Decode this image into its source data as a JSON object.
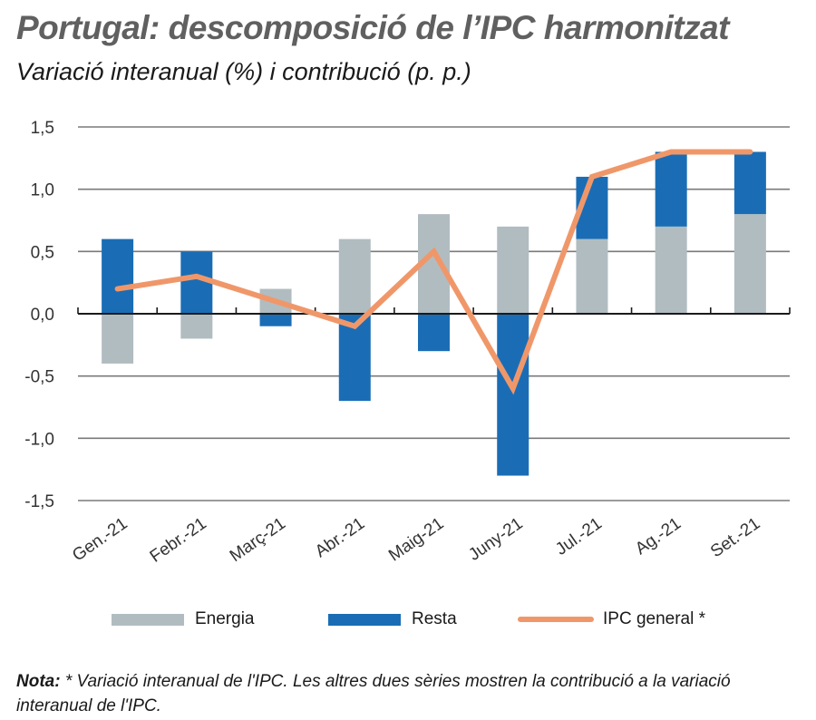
{
  "header": {
    "title": "Portugal: descomposició de l’IPC harmonitzat",
    "subtitle": "Variació interanual (%) i contribució (p. p.)"
  },
  "note": {
    "label": "Nota:",
    "text": " * Variació interanual de l'IPC. Les altres dues sèries mostren la contribució a la variació interanual de l'IPC."
  },
  "colors": {
    "energia": "#b1bcc1",
    "resta": "#1a6db5",
    "ipc": "#f0976a",
    "grid": "#7a7a7a",
    "axis": "#1a1a1a"
  },
  "chart_data": {
    "type": "bar",
    "stacked": true,
    "title": "Portugal: descomposició de l’IPC harmonitzat",
    "subtitle": "Variació interanual (%) i contribució (p. p.)",
    "xlabel": "",
    "ylabel": "",
    "categories": [
      "Gen.-21",
      "Febr.-21",
      "Març-21",
      "Abr.-21",
      "Maig-21",
      "Juny-21",
      "Jul.-21",
      "Ag.-21",
      "Set.-21"
    ],
    "ylim": [
      -1.5,
      1.5
    ],
    "yticks": [
      1.5,
      1.0,
      0.5,
      0.0,
      -0.5,
      -1.0,
      -1.5
    ],
    "ytick_labels": [
      "1,5",
      "1,0",
      "0,5",
      "0,0",
      "-0,5",
      "-1,0",
      "-1,5"
    ],
    "grid": true,
    "legend_position": "bottom",
    "series": [
      {
        "name": "Energia",
        "type": "bar",
        "values": [
          -0.4,
          -0.2,
          0.2,
          0.6,
          0.8,
          0.7,
          0.6,
          0.7,
          0.8
        ]
      },
      {
        "name": "Resta",
        "type": "bar",
        "values": [
          0.6,
          0.5,
          -0.1,
          -0.7,
          -0.3,
          -1.3,
          0.5,
          0.6,
          0.5
        ]
      },
      {
        "name": "IPC general *",
        "type": "line",
        "values": [
          0.2,
          0.3,
          0.1,
          -0.1,
          0.5,
          -0.6,
          1.1,
          1.3,
          1.3
        ]
      }
    ]
  }
}
